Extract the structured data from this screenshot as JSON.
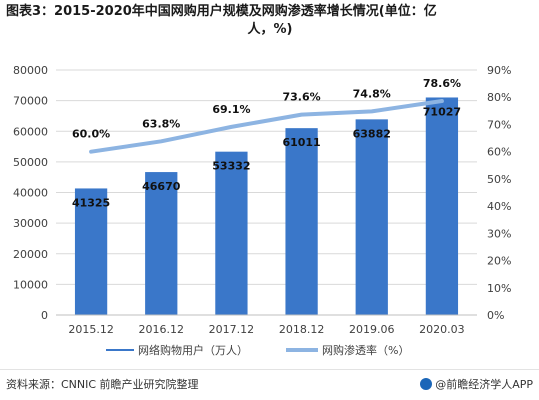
{
  "title_line1": "图表3：2015-2020年中国网购用户规模及网购渗透率增长情况(单位：亿",
  "title_line2": "人，%)",
  "source": "资料来源：CNNIC 前瞻产业研究院整理",
  "brand": "@前瞻经济学人APP",
  "colors": {
    "bar": "#3a77c9",
    "line": "#8db4e2",
    "grid": "#d9d9d9",
    "text": "#404040"
  },
  "chart_data": {
    "type": "bar",
    "categories": [
      "2015.12",
      "2016.12",
      "2017.12",
      "2018.12",
      "2019.06",
      "2020.03"
    ],
    "series": [
      {
        "name": "网络购物用户（万人）",
        "type": "bar",
        "axis": "left",
        "values": [
          41325,
          46670,
          53332,
          61011,
          63882,
          71027
        ],
        "labels": [
          "41325",
          "46670",
          "53332",
          "61011",
          "63882",
          "71027"
        ]
      },
      {
        "name": "网购渗透率（%）",
        "type": "line",
        "axis": "right",
        "values": [
          60.0,
          63.8,
          69.1,
          73.6,
          74.8,
          78.6
        ],
        "labels": [
          "60.0%",
          "63.8%",
          "69.1%",
          "73.6%",
          "74.8%",
          "78.6%"
        ]
      }
    ],
    "y_left": {
      "min": 0,
      "max": 80000,
      "ticks": [
        "0",
        "10000",
        "20000",
        "30000",
        "40000",
        "50000",
        "60000",
        "70000",
        "80000"
      ]
    },
    "y_right": {
      "min": 0,
      "max": 90,
      "ticks": [
        "0%",
        "10%",
        "20%",
        "30%",
        "40%",
        "50%",
        "60%",
        "70%",
        "80%",
        "90%"
      ]
    },
    "grid": true,
    "legend_position": "bottom"
  }
}
